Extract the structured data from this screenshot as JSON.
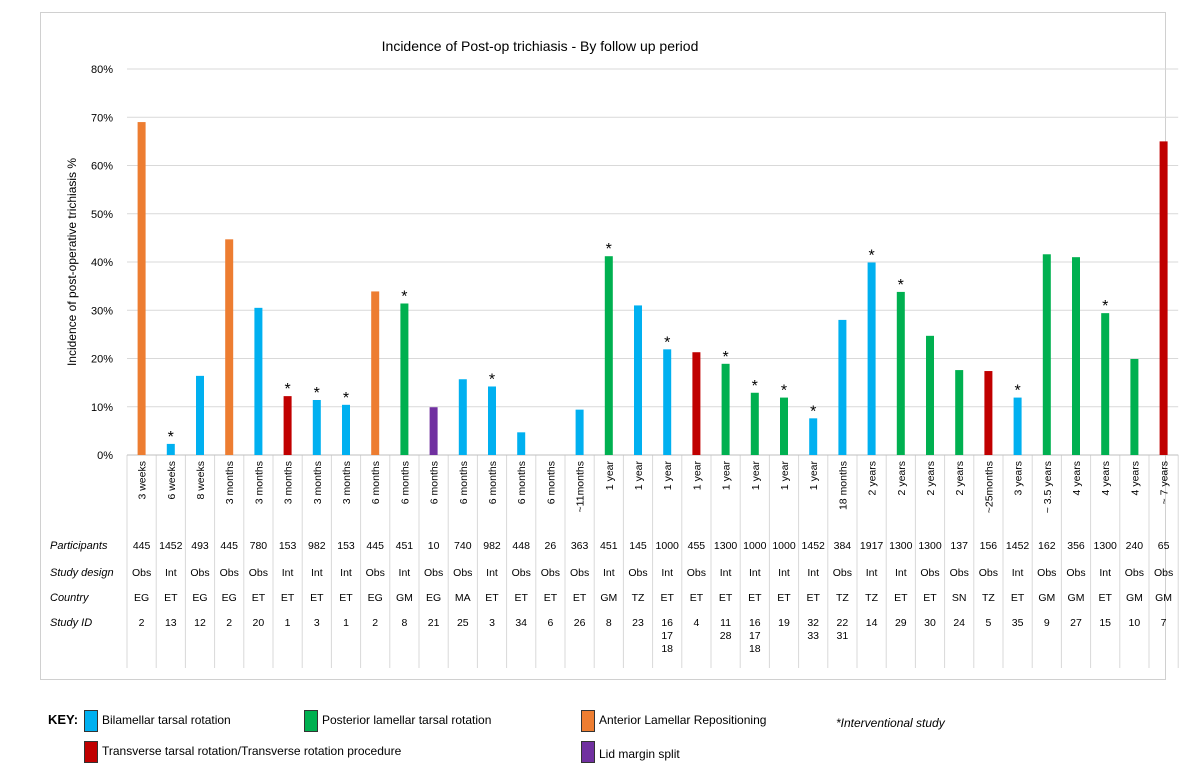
{
  "chart_data": {
    "type": "bar",
    "title": "Incidence of Post-op trichiasis - By follow up period",
    "ylabel": "Incidence of post-operative trichiasis %",
    "ylim": [
      0,
      80
    ],
    "yticks": [
      "0%",
      "10%",
      "20%",
      "30%",
      "40%",
      "50%",
      "60%",
      "70%",
      "80%"
    ],
    "grid": true,
    "colors": {
      "BTRP": "#00B0F0",
      "PLTR": "#00B050",
      "ALR": "#ED7D31",
      "TTR": "#C00000",
      "LMS": "#7030A0"
    },
    "categories": [
      "3 weeks",
      "6 weeks",
      "8 weeks",
      "3 months",
      "3 months",
      "3 months",
      "3 months",
      "3 months",
      "6 months",
      "6 months",
      "6 months",
      "6 months",
      "6 months",
      "6 months",
      "6 months",
      "~11months",
      "1 year",
      "1 year",
      "1 year",
      "1 year",
      "1 year",
      "1 year",
      "1 year",
      "1 year",
      "18 months",
      "2 years",
      "2 years",
      "2 years",
      "2 years",
      "~25months",
      "3 years",
      "~ 3.5 years",
      "4 years",
      "4 years",
      "4 years",
      "~ 7 years"
    ],
    "values": [
      69,
      2.3,
      16.4,
      44.7,
      30.5,
      12.2,
      11.4,
      10.4,
      33.9,
      31.4,
      9.9,
      15.7,
      14.2,
      4.7,
      0,
      9.4,
      41.2,
      31.0,
      21.9,
      21.3,
      18.9,
      12.9,
      11.9,
      7.6,
      28.0,
      39.9,
      33.8,
      24.7,
      17.6,
      17.4,
      11.9,
      41.6,
      41.0,
      29.4,
      19.9,
      65.0
    ],
    "groups": [
      "ALR",
      "BTRP",
      "BTRP",
      "ALR",
      "BTRP",
      "TTR",
      "BTRP",
      "BTRP",
      "ALR",
      "PLTR",
      "LMS",
      "BTRP",
      "BTRP",
      "BTRP",
      "BTRP",
      "BTRP",
      "PLTR",
      "BTRP",
      "BTRP",
      "TTR",
      "PLTR",
      "PLTR",
      "PLTR",
      "BTRP",
      "BTRP",
      "BTRP",
      "PLTR",
      "PLTR",
      "PLTR",
      "TTR",
      "BTRP",
      "PLTR",
      "PLTR",
      "PLTR",
      "PLTR",
      "TTR"
    ],
    "star": [
      false,
      true,
      false,
      false,
      false,
      true,
      true,
      true,
      false,
      true,
      false,
      false,
      true,
      false,
      false,
      false,
      true,
      false,
      true,
      false,
      true,
      true,
      true,
      true,
      false,
      true,
      true,
      false,
      false,
      false,
      true,
      false,
      false,
      true,
      false,
      false
    ],
    "star_symbol": "*",
    "table": {
      "row_labels": [
        "Participants",
        "Study design",
        "Country",
        "Study ID"
      ],
      "participants": [
        "445",
        "1452",
        "493",
        "445",
        "780",
        "153",
        "982",
        "153",
        "445",
        "451",
        "10",
        "740",
        "982",
        "448",
        "26",
        "363",
        "451",
        "145",
        "1000",
        "455",
        "1300",
        "1000",
        "1000",
        "1452",
        "384",
        "1917",
        "1300",
        "1300",
        "137",
        "156",
        "1452",
        "162",
        "356",
        "1300",
        "240",
        "65"
      ],
      "design": [
        "Obs",
        "Int",
        "Obs",
        "Obs",
        "Obs",
        "Int",
        "Int",
        "Int",
        "Obs",
        "Int",
        "Obs",
        "Obs",
        "Int",
        "Obs",
        "Obs",
        "Obs",
        "Int",
        "Obs",
        "Int",
        "Obs",
        "Int",
        "Int",
        "Int",
        "Int",
        "Obs",
        "Int",
        "Int",
        "Obs",
        "Obs",
        "Obs",
        "Int",
        "Obs",
        "Obs",
        "Int",
        "Obs",
        "Obs"
      ],
      "country": [
        "EG",
        "ET",
        "EG",
        "EG",
        "ET",
        "ET",
        "ET",
        "ET",
        "EG",
        "GM",
        "EG",
        "MA",
        "ET",
        "ET",
        "ET",
        "ET",
        "GM",
        "TZ",
        "ET",
        "ET",
        "ET",
        "ET",
        "ET",
        "ET",
        "TZ",
        "TZ",
        "ET",
        "ET",
        "SN",
        "TZ",
        "ET",
        "GM",
        "GM",
        "ET",
        "GM",
        "GM"
      ],
      "study_id": [
        [
          "2"
        ],
        [
          "13"
        ],
        [
          "12"
        ],
        [
          "2"
        ],
        [
          "20"
        ],
        [
          "1"
        ],
        [
          "3"
        ],
        [
          "1"
        ],
        [
          "2"
        ],
        [
          "8"
        ],
        [
          "21"
        ],
        [
          "25"
        ],
        [
          "3"
        ],
        [
          "34"
        ],
        [
          "6"
        ],
        [
          "26"
        ],
        [
          "8"
        ],
        [
          "23"
        ],
        [
          "16",
          "17",
          "18"
        ],
        [
          "4"
        ],
        [
          "11",
          "28"
        ],
        [
          "16",
          "17",
          "18"
        ],
        [
          "19"
        ],
        [
          "32",
          "33"
        ],
        [
          "22",
          "31"
        ],
        [
          "14"
        ],
        [
          "29"
        ],
        [
          "30"
        ],
        [
          "24"
        ],
        [
          "5"
        ],
        [
          "35"
        ],
        [
          "9"
        ],
        [
          "27"
        ],
        [
          "15"
        ],
        [
          "10"
        ],
        [
          "7"
        ]
      ]
    },
    "legend": {
      "title": "KEY:",
      "items": [
        {
          "label": "Bilamellar tarsal rotation",
          "color": "#00B0F0"
        },
        {
          "label": "Posterior lamellar tarsal rotation",
          "color": "#00B050"
        },
        {
          "label": "Anterior Lamellar Repositioning",
          "color": "#ED7D31"
        },
        {
          "label": "Transverse tarsal rotation/Transverse rotation procedure",
          "color": "#C00000"
        },
        {
          "label": "Lid margin split",
          "color": "#7030A0"
        }
      ],
      "note": "*Interventional study"
    }
  }
}
